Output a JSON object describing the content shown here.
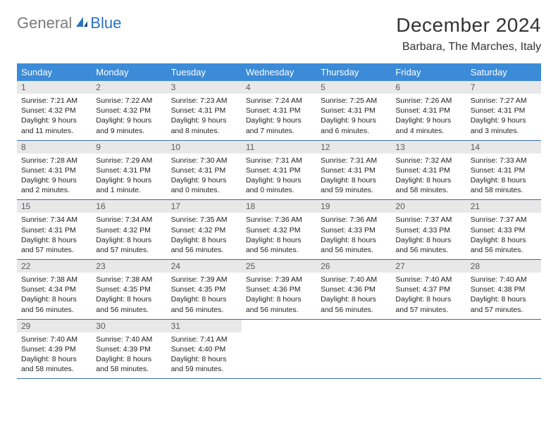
{
  "brand": {
    "general": "General",
    "blue": "Blue"
  },
  "title": "December 2024",
  "location": "Barbara, The Marches, Italy",
  "colors": {
    "header_bg": "#3b8bd8",
    "header_text": "#ffffff",
    "daynum_bg": "#e8e8e8",
    "daynum_text": "#5a5a5a",
    "body_text": "#222222",
    "rule": "#3b6fa8",
    "logo_gray": "#7a7a7a",
    "logo_blue": "#2b72c4"
  },
  "dow": [
    "Sunday",
    "Monday",
    "Tuesday",
    "Wednesday",
    "Thursday",
    "Friday",
    "Saturday"
  ],
  "weeks": [
    [
      {
        "n": "1",
        "sr": "Sunrise: 7:21 AM",
        "ss": "Sunset: 4:32 PM",
        "d1": "Daylight: 9 hours",
        "d2": "and 11 minutes."
      },
      {
        "n": "2",
        "sr": "Sunrise: 7:22 AM",
        "ss": "Sunset: 4:32 PM",
        "d1": "Daylight: 9 hours",
        "d2": "and 9 minutes."
      },
      {
        "n": "3",
        "sr": "Sunrise: 7:23 AM",
        "ss": "Sunset: 4:31 PM",
        "d1": "Daylight: 9 hours",
        "d2": "and 8 minutes."
      },
      {
        "n": "4",
        "sr": "Sunrise: 7:24 AM",
        "ss": "Sunset: 4:31 PM",
        "d1": "Daylight: 9 hours",
        "d2": "and 7 minutes."
      },
      {
        "n": "5",
        "sr": "Sunrise: 7:25 AM",
        "ss": "Sunset: 4:31 PM",
        "d1": "Daylight: 9 hours",
        "d2": "and 6 minutes."
      },
      {
        "n": "6",
        "sr": "Sunrise: 7:26 AM",
        "ss": "Sunset: 4:31 PM",
        "d1": "Daylight: 9 hours",
        "d2": "and 4 minutes."
      },
      {
        "n": "7",
        "sr": "Sunrise: 7:27 AM",
        "ss": "Sunset: 4:31 PM",
        "d1": "Daylight: 9 hours",
        "d2": "and 3 minutes."
      }
    ],
    [
      {
        "n": "8",
        "sr": "Sunrise: 7:28 AM",
        "ss": "Sunset: 4:31 PM",
        "d1": "Daylight: 9 hours",
        "d2": "and 2 minutes."
      },
      {
        "n": "9",
        "sr": "Sunrise: 7:29 AM",
        "ss": "Sunset: 4:31 PM",
        "d1": "Daylight: 9 hours",
        "d2": "and 1 minute."
      },
      {
        "n": "10",
        "sr": "Sunrise: 7:30 AM",
        "ss": "Sunset: 4:31 PM",
        "d1": "Daylight: 9 hours",
        "d2": "and 0 minutes."
      },
      {
        "n": "11",
        "sr": "Sunrise: 7:31 AM",
        "ss": "Sunset: 4:31 PM",
        "d1": "Daylight: 9 hours",
        "d2": "and 0 minutes."
      },
      {
        "n": "12",
        "sr": "Sunrise: 7:31 AM",
        "ss": "Sunset: 4:31 PM",
        "d1": "Daylight: 8 hours",
        "d2": "and 59 minutes."
      },
      {
        "n": "13",
        "sr": "Sunrise: 7:32 AM",
        "ss": "Sunset: 4:31 PM",
        "d1": "Daylight: 8 hours",
        "d2": "and 58 minutes."
      },
      {
        "n": "14",
        "sr": "Sunrise: 7:33 AM",
        "ss": "Sunset: 4:31 PM",
        "d1": "Daylight: 8 hours",
        "d2": "and 58 minutes."
      }
    ],
    [
      {
        "n": "15",
        "sr": "Sunrise: 7:34 AM",
        "ss": "Sunset: 4:31 PM",
        "d1": "Daylight: 8 hours",
        "d2": "and 57 minutes."
      },
      {
        "n": "16",
        "sr": "Sunrise: 7:34 AM",
        "ss": "Sunset: 4:32 PM",
        "d1": "Daylight: 8 hours",
        "d2": "and 57 minutes."
      },
      {
        "n": "17",
        "sr": "Sunrise: 7:35 AM",
        "ss": "Sunset: 4:32 PM",
        "d1": "Daylight: 8 hours",
        "d2": "and 56 minutes."
      },
      {
        "n": "18",
        "sr": "Sunrise: 7:36 AM",
        "ss": "Sunset: 4:32 PM",
        "d1": "Daylight: 8 hours",
        "d2": "and 56 minutes."
      },
      {
        "n": "19",
        "sr": "Sunrise: 7:36 AM",
        "ss": "Sunset: 4:33 PM",
        "d1": "Daylight: 8 hours",
        "d2": "and 56 minutes."
      },
      {
        "n": "20",
        "sr": "Sunrise: 7:37 AM",
        "ss": "Sunset: 4:33 PM",
        "d1": "Daylight: 8 hours",
        "d2": "and 56 minutes."
      },
      {
        "n": "21",
        "sr": "Sunrise: 7:37 AM",
        "ss": "Sunset: 4:33 PM",
        "d1": "Daylight: 8 hours",
        "d2": "and 56 minutes."
      }
    ],
    [
      {
        "n": "22",
        "sr": "Sunrise: 7:38 AM",
        "ss": "Sunset: 4:34 PM",
        "d1": "Daylight: 8 hours",
        "d2": "and 56 minutes."
      },
      {
        "n": "23",
        "sr": "Sunrise: 7:38 AM",
        "ss": "Sunset: 4:35 PM",
        "d1": "Daylight: 8 hours",
        "d2": "and 56 minutes."
      },
      {
        "n": "24",
        "sr": "Sunrise: 7:39 AM",
        "ss": "Sunset: 4:35 PM",
        "d1": "Daylight: 8 hours",
        "d2": "and 56 minutes."
      },
      {
        "n": "25",
        "sr": "Sunrise: 7:39 AM",
        "ss": "Sunset: 4:36 PM",
        "d1": "Daylight: 8 hours",
        "d2": "and 56 minutes."
      },
      {
        "n": "26",
        "sr": "Sunrise: 7:40 AM",
        "ss": "Sunset: 4:36 PM",
        "d1": "Daylight: 8 hours",
        "d2": "and 56 minutes."
      },
      {
        "n": "27",
        "sr": "Sunrise: 7:40 AM",
        "ss": "Sunset: 4:37 PM",
        "d1": "Daylight: 8 hours",
        "d2": "and 57 minutes."
      },
      {
        "n": "28",
        "sr": "Sunrise: 7:40 AM",
        "ss": "Sunset: 4:38 PM",
        "d1": "Daylight: 8 hours",
        "d2": "and 57 minutes."
      }
    ],
    [
      {
        "n": "29",
        "sr": "Sunrise: 7:40 AM",
        "ss": "Sunset: 4:39 PM",
        "d1": "Daylight: 8 hours",
        "d2": "and 58 minutes."
      },
      {
        "n": "30",
        "sr": "Sunrise: 7:40 AM",
        "ss": "Sunset: 4:39 PM",
        "d1": "Daylight: 8 hours",
        "d2": "and 58 minutes."
      },
      {
        "n": "31",
        "sr": "Sunrise: 7:41 AM",
        "ss": "Sunset: 4:40 PM",
        "d1": "Daylight: 8 hours",
        "d2": "and 59 minutes."
      },
      null,
      null,
      null,
      null
    ]
  ]
}
